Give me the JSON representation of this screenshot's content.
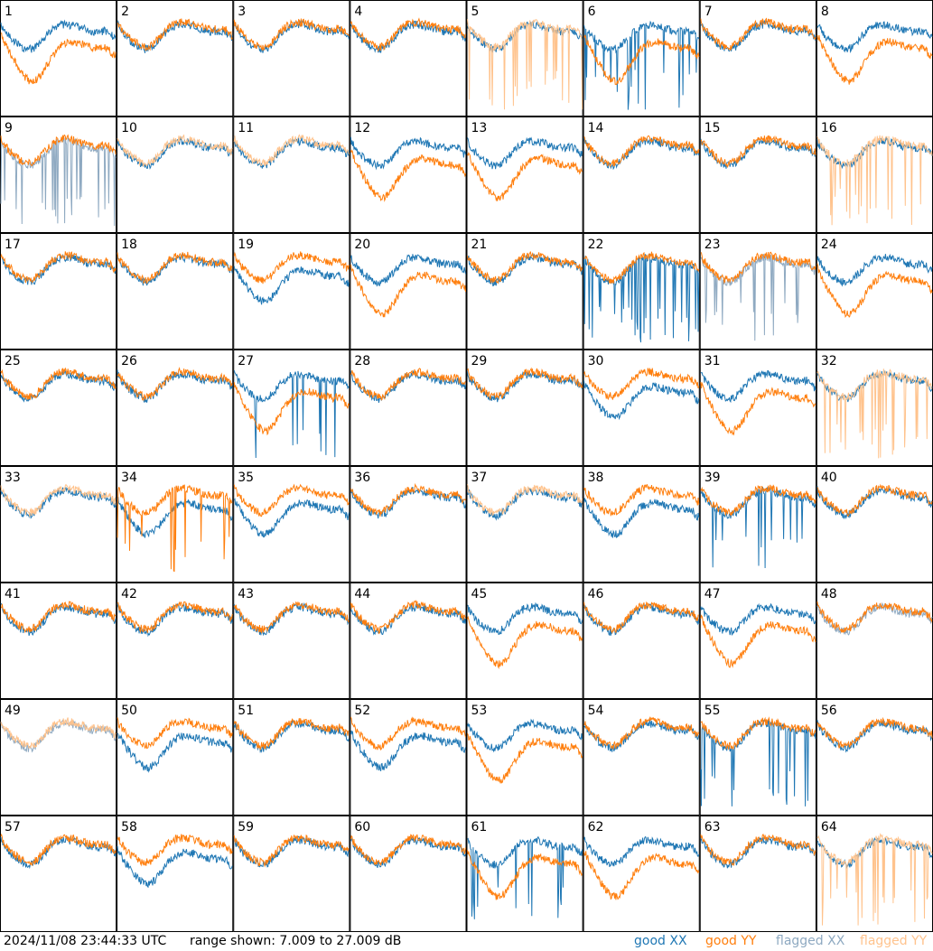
{
  "chart_data": {
    "type": "line",
    "layout": "8x8 small multiples",
    "panels": [
      1,
      2,
      3,
      4,
      5,
      6,
      7,
      8,
      9,
      10,
      11,
      12,
      13,
      14,
      15,
      16,
      17,
      18,
      19,
      20,
      21,
      22,
      23,
      24,
      25,
      26,
      27,
      28,
      29,
      30,
      31,
      32,
      33,
      34,
      35,
      36,
      37,
      38,
      39,
      40,
      41,
      42,
      43,
      44,
      45,
      46,
      47,
      48,
      49,
      50,
      51,
      52,
      53,
      54,
      55,
      56,
      57,
      58,
      59,
      60,
      61,
      62,
      63,
      64
    ],
    "range_db": [
      7.009,
      27.009
    ],
    "series": [
      {
        "name": "good XX",
        "color": "#1f77b4"
      },
      {
        "name": "good YY",
        "color": "#ff7f0e"
      },
      {
        "name": "flagged XX",
        "color": "#8ea9c1"
      },
      {
        "name": "flagged YY",
        "color": "#ffc38d"
      }
    ],
    "panel_states": {
      "flagged_xx": [
        9,
        23,
        48,
        49
      ],
      "flagged_yy": [
        5,
        10,
        11,
        16,
        32,
        33,
        37,
        49,
        64
      ],
      "yy_depressed": [
        1,
        6,
        8,
        12,
        13,
        20,
        24,
        27,
        31,
        45,
        47,
        53,
        61,
        62
      ],
      "xx_depressed": [
        19,
        30,
        34,
        35,
        38,
        50,
        52,
        58
      ],
      "xx_spiky": [
        6,
        9,
        22,
        23,
        27,
        39,
        55,
        61
      ],
      "yy_spiky": [
        5,
        16,
        32,
        34,
        64
      ]
    }
  },
  "footer": {
    "timestamp": "2024/11/08 23:44:33 UTC",
    "range_text": "range shown: 7.009 to 27.009 dB",
    "legend": [
      {
        "label": "good XX",
        "color": "#1f77b4"
      },
      {
        "label": "good YY",
        "color": "#ff7f0e"
      },
      {
        "label": "flagged XX",
        "color": "#8ea9c1"
      },
      {
        "label": "flagged YY",
        "color": "#ffc38d"
      }
    ]
  }
}
